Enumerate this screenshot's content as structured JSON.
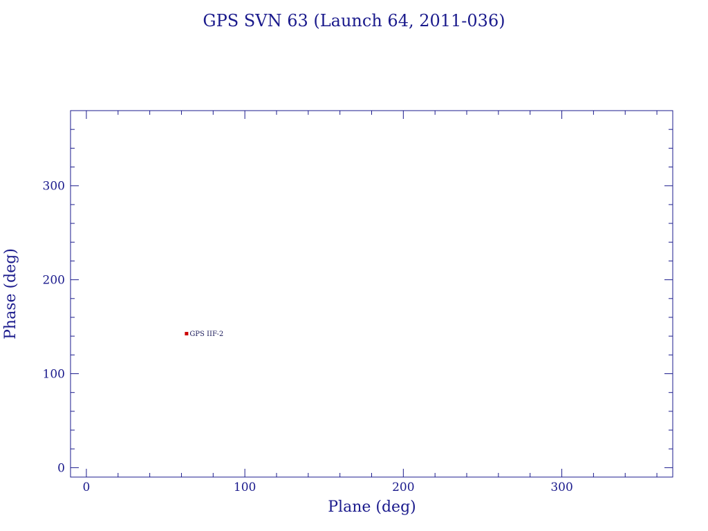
{
  "chart_data": {
    "type": "scatter",
    "title": "GPS SVN 63 (Launch 64, 2011-036)",
    "xlabel": "Plane (deg)",
    "ylabel": "Phase (deg)",
    "xlim": [
      -10,
      370
    ],
    "ylim": [
      -10,
      380
    ],
    "xticks": [
      0,
      100,
      200,
      300
    ],
    "yticks": [
      0,
      100,
      200,
      300
    ],
    "x_minor_step": 20,
    "y_minor_step": 20,
    "grid": false,
    "points": [
      {
        "x": 63,
        "y": 143,
        "label": "GPS IIF-2",
        "color": "#cc0000"
      }
    ]
  },
  "colors": {
    "axis": "#1a1a8c",
    "text": "#1a1a8c",
    "marker": "#cc0000"
  }
}
